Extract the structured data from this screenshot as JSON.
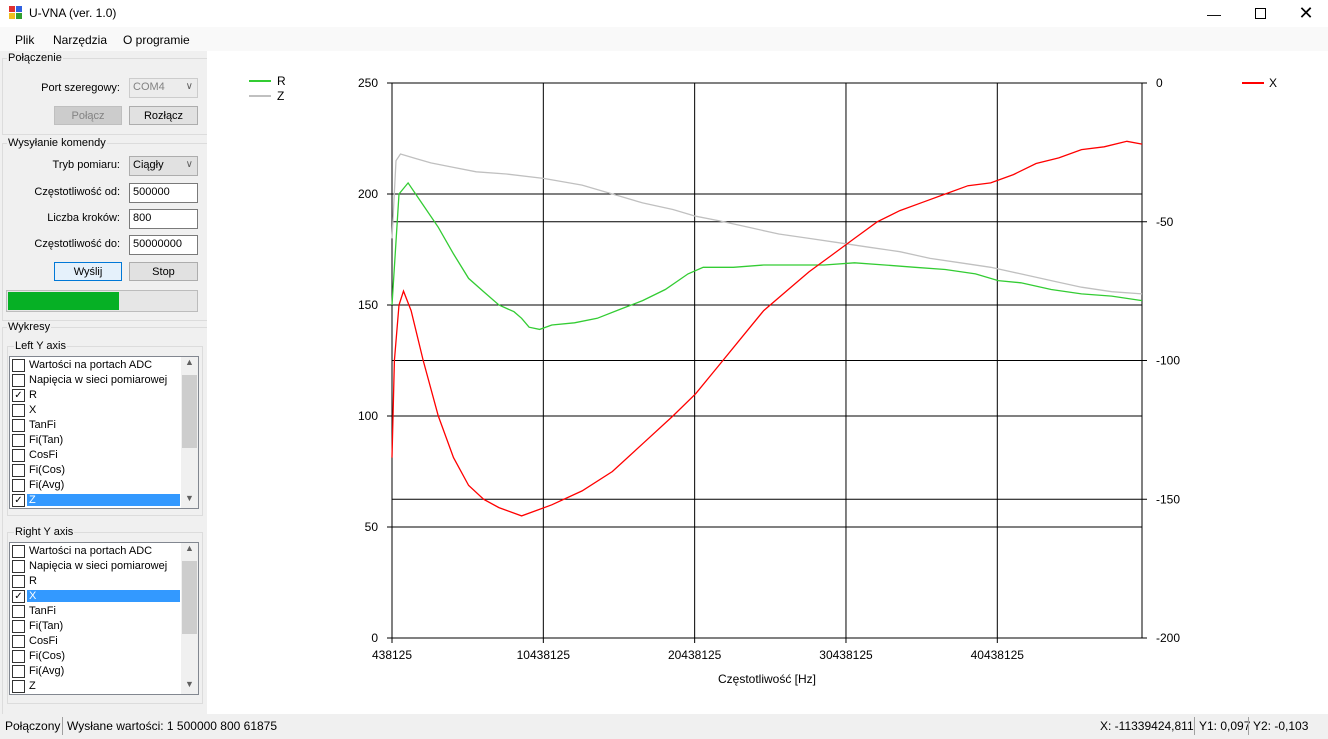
{
  "window": {
    "title": "U-VNA (ver. 1.0)",
    "min_icon": "minimize-icon",
    "max_icon": "maximize-icon",
    "close_icon": "close-icon"
  },
  "menu": [
    "Plik",
    "Narzędzia",
    "O programie"
  ],
  "connection": {
    "group_label": "Połączenie",
    "port_label": "Port szeregowy:",
    "port_value": "COM4",
    "connect_label": "Połącz",
    "disconnect_label": "Rozłącz"
  },
  "command": {
    "group_label": "Wysyłanie komendy",
    "mode_label": "Tryb pomiaru:",
    "mode_value": "Ciągły",
    "freq_from_label": "Częstotliwość od:",
    "freq_from_value": "500000",
    "steps_label": "Liczba kroków:",
    "steps_value": "800",
    "freq_to_label": "Częstotliwość do:",
    "freq_to_value": "50000000",
    "send_label": "Wyślij",
    "stop_label": "Stop",
    "progress": 0.59
  },
  "plots": {
    "group_label": "Wykresy",
    "left_label": "Left Y axis",
    "right_label": "Right Y axis",
    "left_items": [
      {
        "label": "Wartości na portach ADC",
        "checked": false,
        "selected": false
      },
      {
        "label": "Napięcia w sieci pomiarowej",
        "checked": false,
        "selected": false
      },
      {
        "label": "R",
        "checked": true,
        "selected": false
      },
      {
        "label": "X",
        "checked": false,
        "selected": false
      },
      {
        "label": "TanFi",
        "checked": false,
        "selected": false
      },
      {
        "label": "Fi(Tan)",
        "checked": false,
        "selected": false
      },
      {
        "label": "CosFi",
        "checked": false,
        "selected": false
      },
      {
        "label": "Fi(Cos)",
        "checked": false,
        "selected": false
      },
      {
        "label": "Fi(Avg)",
        "checked": false,
        "selected": false
      },
      {
        "label": "Z",
        "checked": true,
        "selected": true
      }
    ],
    "right_items": [
      {
        "label": "Wartości na portach ADC",
        "checked": false,
        "selected": false
      },
      {
        "label": "Napięcia w sieci pomiarowej",
        "checked": false,
        "selected": false
      },
      {
        "label": "R",
        "checked": false,
        "selected": false
      },
      {
        "label": "X",
        "checked": true,
        "selected": true
      },
      {
        "label": "TanFi",
        "checked": false,
        "selected": false
      },
      {
        "label": "Fi(Tan)",
        "checked": false,
        "selected": false
      },
      {
        "label": "CosFi",
        "checked": false,
        "selected": false
      },
      {
        "label": "Fi(Cos)",
        "checked": false,
        "selected": false
      },
      {
        "label": "Fi(Avg)",
        "checked": false,
        "selected": false
      },
      {
        "label": "Z",
        "checked": false,
        "selected": false
      }
    ]
  },
  "status": {
    "state": "Połączony",
    "sent": "Wysłane wartości: 1 500000 800 61875",
    "x": "X: -11339424,811",
    "y1": "Y1: 0,097",
    "y2": "Y2: -0,103"
  },
  "colors": {
    "R": "#33cc33",
    "Z": "#c0c0c0",
    "X": "#ff0000",
    "selection": "#3399ff",
    "progress": "#06b025"
  },
  "chart_data": {
    "type": "line",
    "xlabel": "Częstotliwość [Hz]",
    "xlim": [
      438125,
      50000000
    ],
    "x_ticks": [
      "438125",
      "10438125",
      "20438125",
      "30438125",
      "40438125"
    ],
    "x_tick_values": [
      438125,
      10438125,
      20438125,
      30438125,
      40438125
    ],
    "left_axis": {
      "ylim": [
        0,
        250
      ],
      "ticks": [
        "0",
        "50",
        "100",
        "150",
        "200",
        "250"
      ]
    },
    "right_axis": {
      "ylim": [
        -200,
        0
      ],
      "ticks": [
        "-200",
        "-150",
        "-100",
        "-50",
        "0"
      ]
    },
    "grid": true,
    "series": [
      {
        "name": "R",
        "axis": "left",
        "color": "#33cc33",
        "points": [
          [
            438125,
            150
          ],
          [
            900000,
            200
          ],
          [
            1500000,
            205
          ],
          [
            2500000,
            195
          ],
          [
            3500000,
            185
          ],
          [
            4500000,
            173
          ],
          [
            5500000,
            162
          ],
          [
            6500000,
            156
          ],
          [
            7500000,
            150
          ],
          [
            8500000,
            147
          ],
          [
            9000000,
            144
          ],
          [
            9500000,
            140
          ],
          [
            10200000,
            139
          ],
          [
            11000000,
            141
          ],
          [
            12500000,
            142
          ],
          [
            14000000,
            144
          ],
          [
            15500000,
            148
          ],
          [
            17000000,
            152
          ],
          [
            18500000,
            157
          ],
          [
            20000000,
            164
          ],
          [
            21000000,
            167
          ],
          [
            23000000,
            167
          ],
          [
            25000000,
            168
          ],
          [
            27000000,
            168
          ],
          [
            29000000,
            168
          ],
          [
            31000000,
            169
          ],
          [
            33000000,
            168
          ],
          [
            35000000,
            167
          ],
          [
            37000000,
            166
          ],
          [
            39000000,
            164
          ],
          [
            40500000,
            161
          ],
          [
            42000000,
            160
          ],
          [
            44000000,
            157
          ],
          [
            46000000,
            155
          ],
          [
            48000000,
            154
          ],
          [
            50000000,
            152
          ]
        ]
      },
      {
        "name": "Z",
        "axis": "left",
        "color": "#c0c0c0",
        "points": [
          [
            438125,
            180
          ],
          [
            700000,
            215
          ],
          [
            1000000,
            218
          ],
          [
            2000000,
            216
          ],
          [
            3000000,
            214
          ],
          [
            4500000,
            212
          ],
          [
            6000000,
            210
          ],
          [
            8000000,
            209
          ],
          [
            10500000,
            207
          ],
          [
            13000000,
            204
          ],
          [
            15000000,
            200
          ],
          [
            17000000,
            196
          ],
          [
            19000000,
            193
          ],
          [
            20500000,
            190
          ],
          [
            22000000,
            188
          ],
          [
            24000000,
            185
          ],
          [
            26000000,
            182
          ],
          [
            28000000,
            180
          ],
          [
            30000000,
            178
          ],
          [
            32000000,
            176
          ],
          [
            34000000,
            174
          ],
          [
            36000000,
            171
          ],
          [
            38000000,
            169
          ],
          [
            40000000,
            167
          ],
          [
            42000000,
            164
          ],
          [
            44000000,
            161
          ],
          [
            46000000,
            158
          ],
          [
            48000000,
            156
          ],
          [
            50000000,
            155
          ]
        ]
      },
      {
        "name": "X",
        "axis": "right",
        "color": "#ff0000",
        "points": [
          [
            438125,
            -135
          ],
          [
            600000,
            -100
          ],
          [
            900000,
            -80
          ],
          [
            1200000,
            -75
          ],
          [
            1700000,
            -82
          ],
          [
            2500000,
            -100
          ],
          [
            3500000,
            -120
          ],
          [
            4500000,
            -135
          ],
          [
            5500000,
            -145
          ],
          [
            6500000,
            -150
          ],
          [
            7500000,
            -153
          ],
          [
            8500000,
            -155
          ],
          [
            9000000,
            -156
          ],
          [
            10000000,
            -154
          ],
          [
            11000000,
            -152
          ],
          [
            13000000,
            -147
          ],
          [
            15000000,
            -140
          ],
          [
            17000000,
            -130
          ],
          [
            19000000,
            -120
          ],
          [
            20500000,
            -112
          ],
          [
            22000000,
            -102
          ],
          [
            23500000,
            -92
          ],
          [
            25000000,
            -82
          ],
          [
            26500000,
            -75
          ],
          [
            28000000,
            -68
          ],
          [
            29500000,
            -62
          ],
          [
            31000000,
            -56
          ],
          [
            32500000,
            -50
          ],
          [
            34000000,
            -46
          ],
          [
            35500000,
            -43
          ],
          [
            37000000,
            -40
          ],
          [
            38500000,
            -37
          ],
          [
            40000000,
            -36
          ],
          [
            41500000,
            -33
          ],
          [
            43000000,
            -29
          ],
          [
            44500000,
            -27
          ],
          [
            46000000,
            -24
          ],
          [
            47500000,
            -23
          ],
          [
            49000000,
            -21
          ],
          [
            50000000,
            -22
          ]
        ]
      }
    ]
  }
}
